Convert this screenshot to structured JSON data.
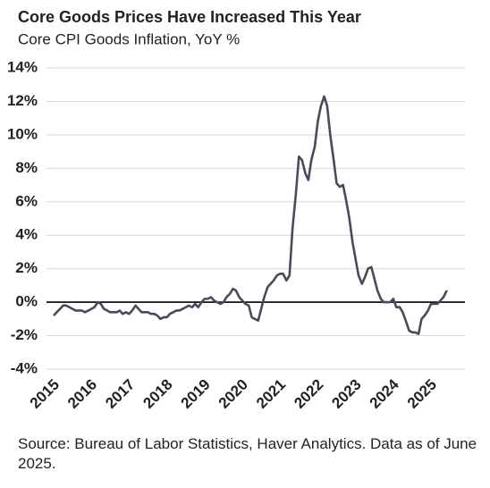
{
  "chart_data": {
    "type": "line",
    "title": "Core Goods Prices Have Increased This Year",
    "subtitle": "Core CPI Goods Inflation, YoY %",
    "source": "Source: Bureau of Labor Statistics, Haver Analytics. Data as of June 2025.",
    "color": "#4a4a5c",
    "x": [
      2015,
      2015.08,
      2015.17,
      2015.25,
      2015.33,
      2015.42,
      2015.5,
      2015.58,
      2015.67,
      2015.75,
      2015.83,
      2015.92,
      2016,
      2016.08,
      2016.17,
      2016.25,
      2016.33,
      2016.42,
      2016.5,
      2016.58,
      2016.67,
      2016.75,
      2016.83,
      2016.92,
      2017,
      2017.08,
      2017.17,
      2017.25,
      2017.33,
      2017.42,
      2017.5,
      2017.58,
      2017.67,
      2017.75,
      2017.83,
      2017.92,
      2018,
      2018.08,
      2018.17,
      2018.25,
      2018.33,
      2018.42,
      2018.5,
      2018.58,
      2018.67,
      2018.75,
      2018.83,
      2018.92,
      2019,
      2019.08,
      2019.17,
      2019.25,
      2019.33,
      2019.42,
      2019.5,
      2019.58,
      2019.67,
      2019.75,
      2019.83,
      2019.92,
      2020,
      2020.08,
      2020.17,
      2020.25,
      2020.33,
      2020.42,
      2020.5,
      2020.58,
      2020.67,
      2020.75,
      2020.83,
      2020.92,
      2021,
      2021.08,
      2021.17,
      2021.25,
      2021.33,
      2021.42,
      2021.5,
      2021.58,
      2021.67,
      2021.75,
      2021.83,
      2021.92,
      2022,
      2022.08,
      2022.17,
      2022.25,
      2022.33,
      2022.42,
      2022.5,
      2022.58,
      2022.67,
      2022.75,
      2022.83,
      2022.92,
      2023,
      2023.08,
      2023.17,
      2023.25,
      2023.33,
      2023.42,
      2023.5,
      2023.58,
      2023.67,
      2023.75,
      2023.83,
      2023.92,
      2024,
      2024.08,
      2024.17,
      2024.25,
      2024.33,
      2024.42,
      2024.5,
      2024.58,
      2024.67,
      2024.75,
      2024.83,
      2024.92,
      2025,
      2025.08,
      2025.17,
      2025.25,
      2025.33,
      2025.42
    ],
    "values": [
      -0.8,
      -0.6,
      -0.4,
      -0.2,
      -0.2,
      -0.3,
      -0.4,
      -0.5,
      -0.5,
      -0.5,
      -0.6,
      -0.5,
      -0.4,
      -0.3,
      0.0,
      -0.1,
      -0.4,
      -0.5,
      -0.6,
      -0.6,
      -0.6,
      -0.5,
      -0.7,
      -0.6,
      -0.7,
      -0.5,
      -0.2,
      -0.4,
      -0.6,
      -0.6,
      -0.6,
      -0.7,
      -0.7,
      -0.8,
      -1.0,
      -0.9,
      -0.9,
      -0.7,
      -0.6,
      -0.5,
      -0.5,
      -0.4,
      -0.3,
      -0.2,
      -0.3,
      -0.1,
      -0.3,
      0.0,
      0.2,
      0.2,
      0.3,
      0.1,
      0.0,
      -0.1,
      0.0,
      0.3,
      0.5,
      0.8,
      0.7,
      0.3,
      0.1,
      -0.1,
      -0.2,
      -0.9,
      -1.0,
      -1.1,
      -0.4,
      0.3,
      0.9,
      1.1,
      1.3,
      1.6,
      1.7,
      1.7,
      1.3,
      1.6,
      4.4,
      6.5,
      8.7,
      8.5,
      7.7,
      7.3,
      8.5,
      9.3,
      10.8,
      11.7,
      12.3,
      11.7,
      10.0,
      8.5,
      7.1,
      6.9,
      7.0,
      6.1,
      5.1,
      3.6,
      2.6,
      1.6,
      1.1,
      1.5,
      2.0,
      2.1,
      1.4,
      0.7,
      0.2,
      0.0,
      0.0,
      0.0,
      0.2,
      -0.3,
      -0.3,
      -0.6,
      -1.1,
      -1.7,
      -1.8,
      -1.8,
      -1.9,
      -1.0,
      -0.8,
      -0.5,
      -0.1,
      -0.1,
      -0.1,
      0.1,
      0.3,
      0.7
    ],
    "xlim": [
      2015,
      2025.9
    ],
    "xticks": [
      2015,
      2016,
      2017,
      2018,
      2019,
      2020,
      2021,
      2022,
      2023,
      2024,
      2025
    ],
    "ylim": [
      -4,
      14
    ],
    "yticks": [
      {
        "value": -4,
        "label": "-4%"
      },
      {
        "value": -2,
        "label": "-2%"
      },
      {
        "value": 0,
        "label": "0%"
      },
      {
        "value": 2,
        "label": "2%"
      },
      {
        "value": 4,
        "label": "4%"
      },
      {
        "value": 6,
        "label": "6%"
      },
      {
        "value": 8,
        "label": "8%"
      },
      {
        "value": 10,
        "label": "10%"
      },
      {
        "value": 12,
        "label": "12%"
      },
      {
        "value": 14,
        "label": "14%"
      }
    ],
    "grid": true,
    "zero_line": true
  }
}
